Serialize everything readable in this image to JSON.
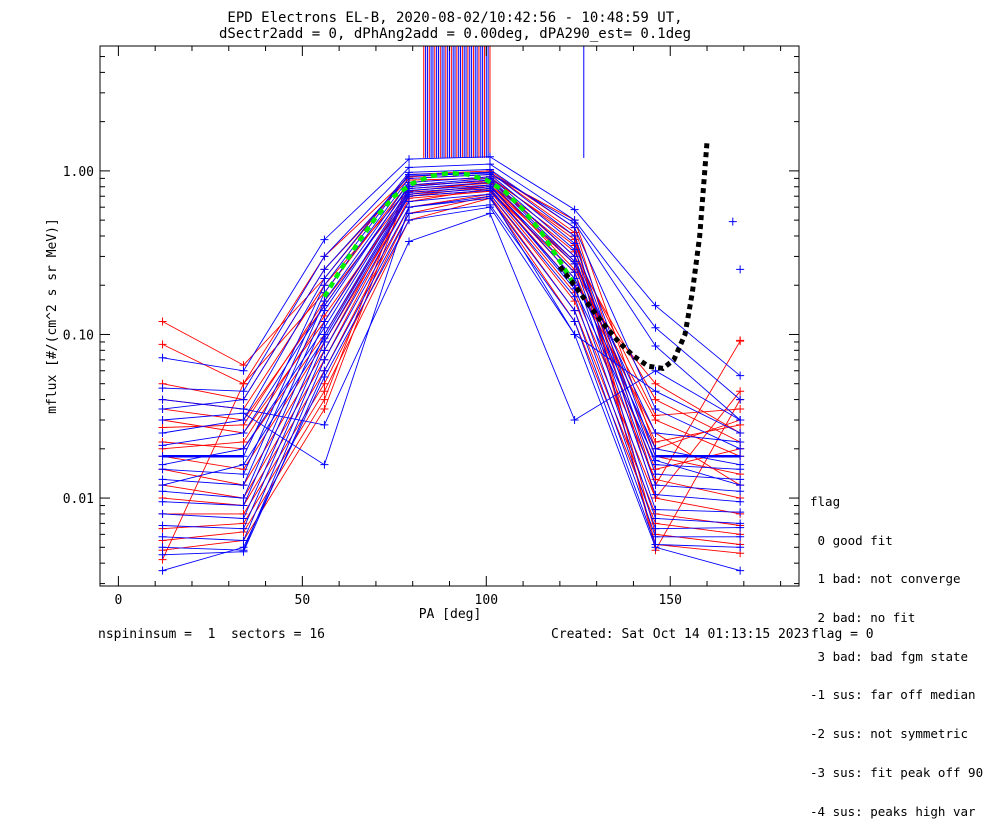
{
  "title": {
    "line1": "EPD Electrons EL-B, 2020-08-02/10:42:56 - 10:48:59 UT,",
    "line2": "dSectr2add = 0, dPhAng2add = 0.00deg, dPA290_est=   0.1deg"
  },
  "footer": {
    "left": "nspininsum =  1  sectors = 16",
    "created": "Created: Sat Oct 14 01:13:15 2023",
    "flag": "flag = 0"
  },
  "legend": {
    "title": "flag",
    "items": [
      " 0 good fit",
      " 1 bad: not converge",
      " 2 bad: no fit",
      " 3 bad: bad fgm state",
      "-1 sus: far off median",
      "-2 sus: not symmetric",
      "-3 sus: fit peak off 90",
      "-4 sus: peaks high var"
    ]
  },
  "chart_data": {
    "type": "line",
    "xlabel": "PA [deg]",
    "ylabel": "mflux [#/(cm^2 s sr MeV)]",
    "xlim": [
      -5,
      185
    ],
    "ylim": [
      0.0029,
      5.8
    ],
    "yscale": "log",
    "xticks": [
      0,
      50,
      100,
      150
    ],
    "yticks": [
      0.01,
      0.1,
      1.0
    ],
    "ytick_labels": [
      "0.01",
      "0.10",
      "1.00"
    ],
    "pa": [
      12,
      34,
      56,
      79,
      101,
      124,
      146,
      169
    ],
    "series_colors": {
      "red": "#ff0000",
      "blue": "#0000ff",
      "green_fit": "#00ee00",
      "black_fit": "#000000"
    },
    "red_spectra": [
      [
        0.12,
        0.065,
        0.22,
        0.95,
        1.0,
        0.45,
        0.012,
        0.091
      ],
      [
        0.087,
        0.05,
        0.18,
        0.85,
        0.92,
        0.38,
        0.01,
        0.045
      ],
      [
        0.05,
        0.04,
        0.25,
        0.9,
        0.95,
        0.5,
        0.02,
        0.03
      ],
      [
        0.035,
        0.03,
        0.15,
        0.8,
        0.88,
        0.3,
        0.04,
        0.022
      ],
      [
        0.03,
        0.025,
        0.12,
        0.75,
        0.85,
        0.25,
        0.03,
        0.018
      ],
      [
        0.022,
        0.02,
        0.1,
        0.7,
        0.8,
        0.22,
        0.025,
        0.012
      ],
      [
        0.018,
        0.015,
        0.09,
        0.65,
        0.78,
        0.2,
        0.05,
        0.025
      ],
      [
        0.015,
        0.012,
        0.08,
        0.72,
        0.82,
        0.28,
        0.018,
        0.014
      ],
      [
        0.012,
        0.01,
        0.07,
        0.68,
        0.75,
        0.18,
        0.013,
        0.01
      ],
      [
        0.01,
        0.009,
        0.06,
        0.6,
        0.72,
        0.16,
        0.01,
        0.008
      ],
      [
        0.008,
        0.008,
        0.05,
        0.55,
        0.7,
        0.14,
        0.008,
        0.0068
      ],
      [
        0.0065,
        0.007,
        0.045,
        0.5,
        0.68,
        0.12,
        0.007,
        0.006
      ],
      [
        0.0055,
        0.0062,
        0.04,
        0.88,
        0.9,
        0.4,
        0.006,
        0.0052
      ],
      [
        0.0048,
        0.0055,
        0.035,
        0.82,
        0.86,
        0.35,
        0.0052,
        0.0046
      ],
      [
        0.0042,
        0.05,
        0.3,
        0.92,
        0.98,
        0.42,
        0.0048,
        0.04
      ],
      [
        0.04,
        0.035,
        0.2,
        0.78,
        0.84,
        0.32,
        0.032,
        0.035
      ],
      [
        0.027,
        0.028,
        0.16,
        0.74,
        0.8,
        0.27,
        0.022,
        0.028
      ],
      [
        0.02,
        0.022,
        0.13,
        0.7,
        0.76,
        0.24,
        0.015,
        0.02
      ]
    ],
    "blue_spectra": [
      [
        0.072,
        0.06,
        0.38,
        1.18,
        1.22,
        0.58,
        0.15,
        0.056
      ],
      [
        0.047,
        0.045,
        0.3,
        1.05,
        1.1,
        0.5,
        0.11,
        0.04
      ],
      [
        0.04,
        0.035,
        0.028,
        0.37,
        0.55,
        0.03,
        0.06,
        0.03
      ],
      [
        0.03,
        0.033,
        0.016,
        0.6,
        0.7,
        0.1,
        0.045,
        0.025
      ],
      [
        0.025,
        0.03,
        0.22,
        0.98,
        1.02,
        0.45,
        0.035,
        0.02
      ],
      [
        0.018,
        0.018,
        0.2,
        0.95,
        0.98,
        0.4,
        0.018,
        0.018
      ],
      [
        0.015,
        0.014,
        0.18,
        0.9,
        0.95,
        0.36,
        0.016,
        0.015
      ],
      [
        0.013,
        0.012,
        0.16,
        0.85,
        0.92,
        0.33,
        0.014,
        0.013
      ],
      [
        0.011,
        0.01,
        0.14,
        0.82,
        0.9,
        0.3,
        0.012,
        0.011
      ],
      [
        0.0095,
        0.009,
        0.12,
        0.78,
        0.85,
        0.27,
        0.0105,
        0.0095
      ],
      [
        0.008,
        0.0075,
        0.1,
        0.74,
        0.8,
        0.24,
        0.0085,
        0.0082
      ],
      [
        0.0068,
        0.0065,
        0.09,
        0.7,
        0.76,
        0.2,
        0.0075,
        0.007
      ],
      [
        0.0058,
        0.0055,
        0.08,
        0.65,
        0.72,
        0.17,
        0.0065,
        0.0066
      ],
      [
        0.005,
        0.0048,
        0.07,
        0.6,
        0.68,
        0.14,
        0.0058,
        0.0058
      ],
      [
        0.0045,
        0.0047,
        0.06,
        0.55,
        0.62,
        0.12,
        0.0052,
        0.005
      ],
      [
        0.0036,
        0.005,
        0.055,
        0.5,
        0.6,
        0.1,
        0.005,
        0.0036
      ],
      [
        0.035,
        0.04,
        0.25,
        0.93,
        0.97,
        0.48,
        0.085,
        0.03
      ],
      [
        0.021,
        0.025,
        0.15,
        0.8,
        0.88,
        0.28,
        0.025,
        0.022
      ],
      [
        0.016,
        0.02,
        0.11,
        0.76,
        0.82,
        0.22,
        0.02,
        0.016
      ],
      [
        0.012,
        0.016,
        0.095,
        0.72,
        0.78,
        0.19,
        0.017,
        0.012
      ]
    ],
    "blue_outliers": [
      {
        "x": 167,
        "y": 0.49
      },
      {
        "x": 169,
        "y": 0.25
      }
    ],
    "red_outliers": [
      {
        "x": 169,
        "y": 0.092
      }
    ],
    "green_fit": [
      [
        56,
        0.17
      ],
      [
        60,
        0.24
      ],
      [
        65,
        0.36
      ],
      [
        70,
        0.52
      ],
      [
        75,
        0.7
      ],
      [
        80,
        0.84
      ],
      [
        85,
        0.93
      ],
      [
        90,
        0.97
      ],
      [
        95,
        0.95
      ],
      [
        100,
        0.88
      ],
      [
        105,
        0.75
      ],
      [
        110,
        0.58
      ],
      [
        115,
        0.42
      ],
      [
        120,
        0.28
      ],
      [
        124,
        0.2
      ]
    ],
    "black_fit": [
      [
        120,
        0.26
      ],
      [
        124,
        0.2
      ],
      [
        128,
        0.15
      ],
      [
        132,
        0.115
      ],
      [
        136,
        0.09
      ],
      [
        140,
        0.074
      ],
      [
        144,
        0.064
      ],
      [
        148,
        0.062
      ],
      [
        151,
        0.07
      ],
      [
        154,
        0.1
      ],
      [
        156,
        0.18
      ],
      [
        158,
        0.4
      ],
      [
        160,
        1.5
      ]
    ]
  }
}
